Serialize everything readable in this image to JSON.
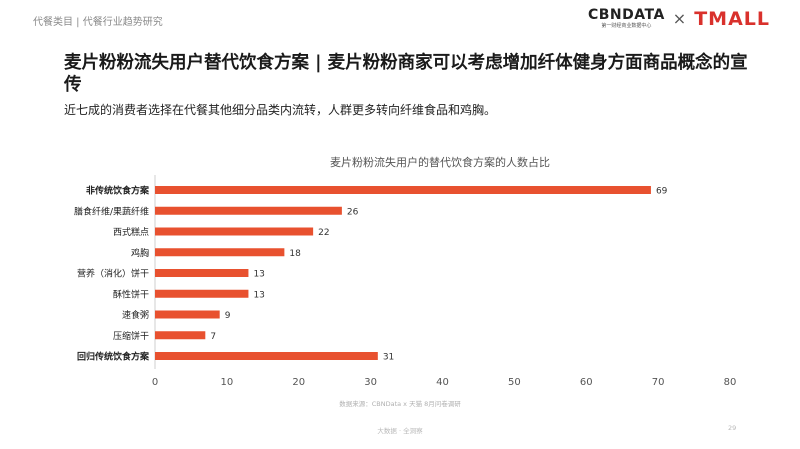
{
  "header": {
    "breadcrumb": "代餐类目 | 代餐行业趋势研究",
    "logo_cbn": "CBNDATA",
    "logo_cbn_sub": "第一财经商业数据中心",
    "logo_separator": "×",
    "logo_tmall": "TMALL"
  },
  "title": "麦片粉粉流失用户替代饮食方案 | 麦片粉粉商家可以考虑增加纤体健身方面商品概念的宣传",
  "subtitle": "近七成的消费者选择在代餐其他细分品类内流转，人群更多转向纤维食品和鸡胸。",
  "chart_data": {
    "type": "bar",
    "orientation": "horizontal",
    "title": "麦片粉粉流失用户的替代饮食方案的人数占比",
    "categories": [
      "非传统饮食方案",
      "膳食纤维/果蔬纤维",
      "西式糕点",
      "鸡胸",
      "营养（消化）饼干",
      "酥性饼干",
      "速食粥",
      "压缩饼干",
      "回归传统饮食方案"
    ],
    "bold_categories": [
      "非传统饮食方案",
      "回归传统饮食方案"
    ],
    "values": [
      69,
      26,
      22,
      18,
      13,
      13,
      9,
      7,
      31
    ],
    "xlim": [
      0,
      80
    ],
    "xticks": [
      0,
      10,
      20,
      30,
      40,
      50,
      60,
      70,
      80
    ],
    "xlabel": "",
    "ylabel": "",
    "grid": false,
    "legend": "none",
    "bar_color": "#e8512f"
  },
  "source": "数据来源：CBNData x 天猫 8月问卷调研",
  "footer": {
    "text": "大数据 · 全洞察",
    "page_number": "29"
  }
}
